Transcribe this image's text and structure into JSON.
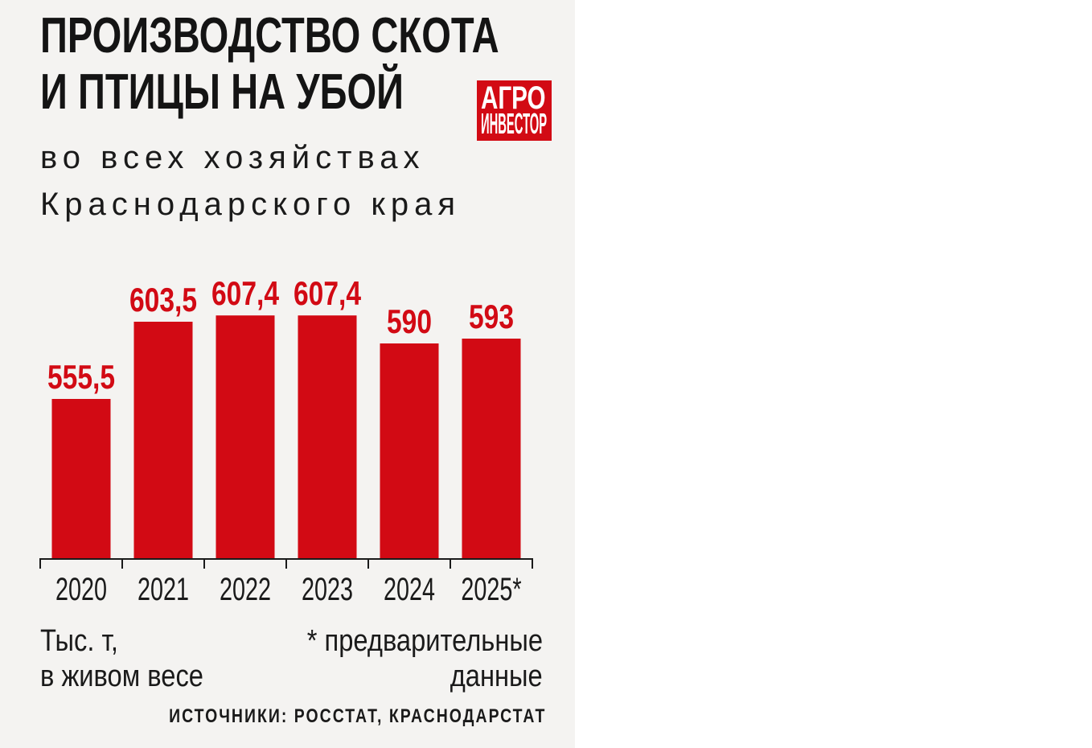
{
  "colors": {
    "panel_background": "#f4f3f1",
    "accent_red": "#d20a14",
    "text": "#1a1a1a",
    "logo_text": "#ffffff"
  },
  "logo": {
    "line1": "АГРО",
    "line2": "ИНВЕСТОР"
  },
  "chart_data": {
    "type": "bar",
    "title": [
      "ПРОИЗВОДСТВО СКОТА",
      "И ПТИЦЫ НА УБОЙ"
    ],
    "subtitle": [
      "во всех хозяйствах",
      "Краснодарского края"
    ],
    "categories": [
      "2020",
      "2021",
      "2022",
      "2023",
      "2024",
      "2025*"
    ],
    "values": [
      555.5,
      603.5,
      607.4,
      607.4,
      590,
      593
    ],
    "data_labels": [
      "555,5",
      "603,5",
      "607,4",
      "607,4",
      "590",
      "593"
    ],
    "ylabel": [
      "Тыс. т,",
      "в живом весе"
    ],
    "footnote": [
      "* предварительные",
      "данные"
    ],
    "source": "ИСТОЧНИКИ: РОССТАТ, КРАСНОДАРСТАТ",
    "ylim": [
      456,
      620
    ],
    "grid": false,
    "legend": "none"
  }
}
